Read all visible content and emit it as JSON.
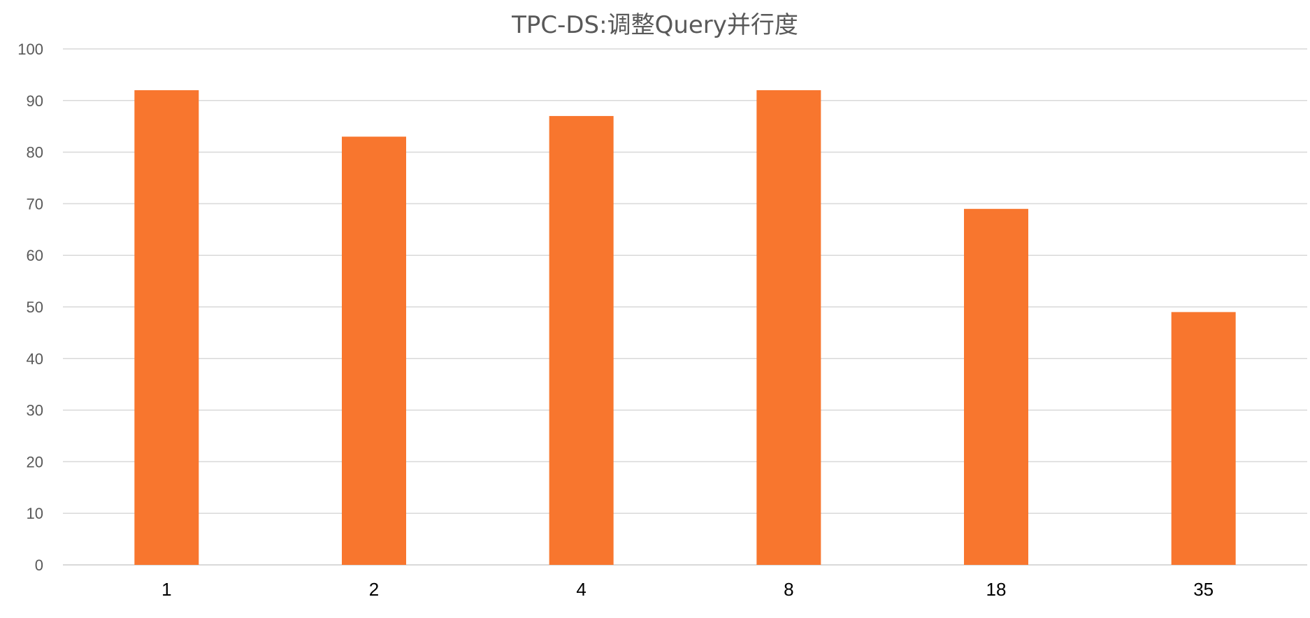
{
  "chart_data": {
    "type": "bar",
    "title": "TPC-DS:调整Query并行度",
    "xlabel": "",
    "ylabel": "",
    "categories": [
      "1",
      "2",
      "4",
      "8",
      "18",
      "35"
    ],
    "values": [
      92,
      83,
      87,
      92,
      69,
      49
    ],
    "ylim": [
      0,
      100
    ],
    "yticks": [
      0,
      10,
      20,
      30,
      40,
      50,
      60,
      70,
      80,
      90,
      100
    ],
    "grid": true,
    "legend": "none",
    "bar_color": "#F8762E",
    "grid_color": "#D9D9D9"
  }
}
